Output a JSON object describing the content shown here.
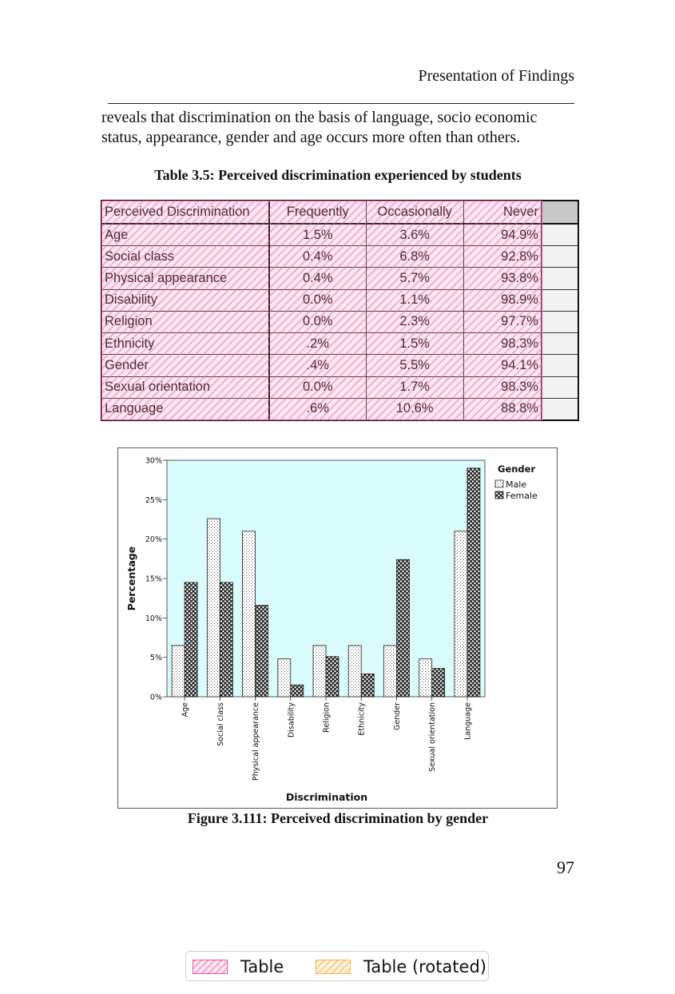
{
  "header": {
    "running_head": "Presentation of Findings"
  },
  "body": {
    "lines": [
      "reveals that discrimination on the basis of language, socio economic",
      "status, appearance, gender and age occurs more often than others."
    ]
  },
  "table": {
    "caption": "Table 3.5: Perceived discrimination experienced by students",
    "columns": [
      "Perceived Discrimination",
      "Frequently",
      "Occasionally",
      "Never"
    ],
    "rows": [
      [
        "Age",
        "1.5%",
        "3.6%",
        "94.9%"
      ],
      [
        "Social class",
        "0.4%",
        "6.8%",
        "92.8%"
      ],
      [
        "Physical appearance",
        "0.4%",
        "5.7%",
        "93.8%"
      ],
      [
        "Disability",
        "0.0%",
        "1.1%",
        "98.9%"
      ],
      [
        "Religion",
        "0.0%",
        "2.3%",
        "97.7%"
      ],
      [
        "Ethnicity",
        ".2%",
        "1.5%",
        "98.3%"
      ],
      [
        "Gender",
        ".4%",
        "5.5%",
        "94.1%"
      ],
      [
        "Sexual orientation",
        "0.0%",
        "1.7%",
        "98.3%"
      ],
      [
        "Language",
        ".6%",
        "10.6%",
        "88.8%"
      ]
    ]
  },
  "figure": {
    "caption": "Figure 3.111: Perceived discrimination by gender"
  },
  "chart_data": {
    "type": "bar",
    "title": "",
    "xlabel": "Discrimination",
    "ylabel": "Percentage",
    "ylim": [
      0,
      30
    ],
    "yticks": [
      "0%",
      "5%",
      "10%",
      "15%",
      "20%",
      "25%",
      "30%"
    ],
    "categories": [
      "Age",
      "Social class",
      "Physical appearance",
      "Disability",
      "Religion",
      "Ethnicity",
      "Gender",
      "Sexual orientation",
      "Language"
    ],
    "legend_title": "Gender",
    "legend_position": "top-right",
    "plot_background": "#d9fbfc",
    "series": [
      {
        "name": "Male",
        "pattern": "dotted",
        "values": [
          6.5,
          22.6,
          21.0,
          4.8,
          6.5,
          6.5,
          6.5,
          4.8,
          21.0
        ]
      },
      {
        "name": "Female",
        "pattern": "crosshatch",
        "values": [
          14.5,
          14.5,
          11.6,
          1.5,
          5.1,
          2.9,
          17.4,
          3.6,
          29.0
        ]
      }
    ]
  },
  "page_number": "97",
  "annotation_legend": {
    "items": [
      {
        "label": "Table",
        "color": "#ee55a0"
      },
      {
        "label": "Table (rotated)",
        "color": "#f2b24a"
      }
    ]
  }
}
